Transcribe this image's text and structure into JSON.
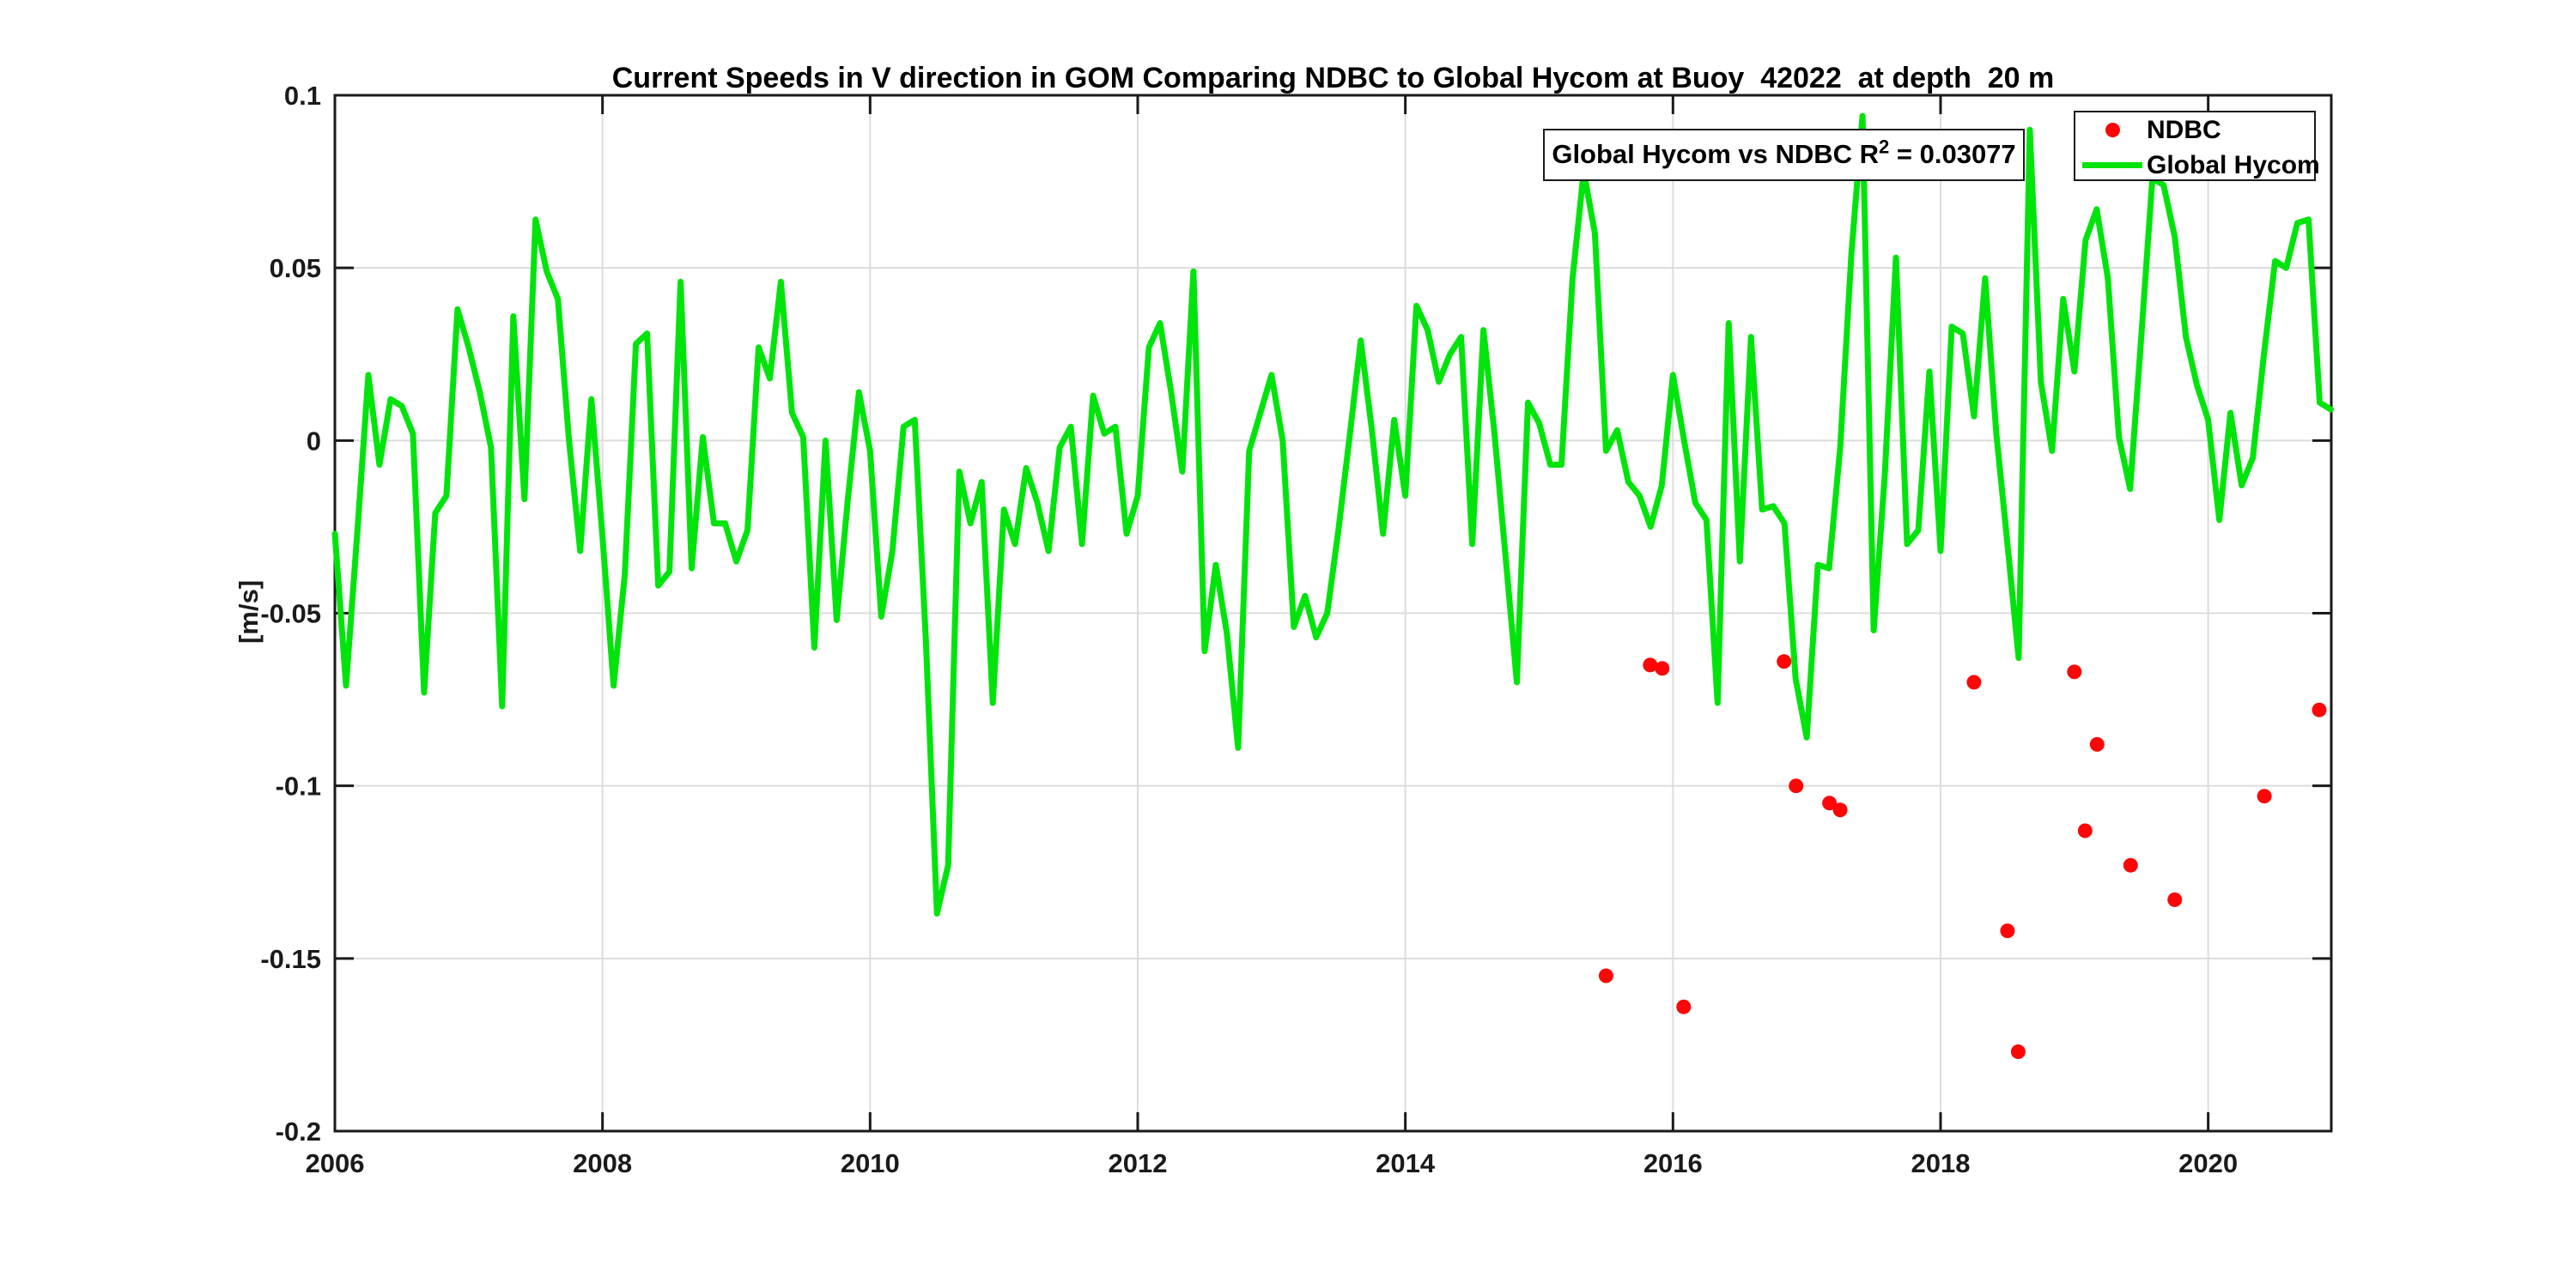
{
  "figure": {
    "background": "#ffffff"
  },
  "annotation": {
    "prefix": "Global Hycom vs NDBC R",
    "superscript": "2",
    "suffix": " = 0.03077"
  },
  "legend": {
    "position": "top-right",
    "items": [
      {
        "label": "NDBC",
        "marker": "red-dot"
      },
      {
        "label": "Global Hycom",
        "marker": "green-line"
      }
    ]
  },
  "colors": {
    "ndbc": "#fb0707",
    "hycom": "#00e40c",
    "axis": "#1a1a1a",
    "grid": "#dcdcdc",
    "background": "#ffffff"
  },
  "chart_data": {
    "type": "line",
    "title": "Current Speeds in V direction in GOM Comparing NDBC to Global Hycom at Buoy  42022  at depth  20 m",
    "xlabel": "",
    "ylabel": "[m/s]",
    "xlim": [
      2006,
      2020.92
    ],
    "ylim": [
      -0.2,
      0.1
    ],
    "grid": true,
    "legend_position": "top-right",
    "xticks": {
      "values": [
        2006,
        2008,
        2010,
        2012,
        2014,
        2016,
        2018,
        2020
      ],
      "labels": [
        "2006",
        "2008",
        "2010",
        "2012",
        "2014",
        "2016",
        "2018",
        "2020"
      ]
    },
    "yticks": {
      "values": [
        0.1,
        0.05,
        0,
        -0.05,
        -0.1,
        -0.15,
        -0.2
      ],
      "labels": [
        "0.1",
        "0.05",
        "0",
        "-0.05",
        "-0.1",
        "-0.15",
        "-0.2"
      ]
    },
    "series": [
      {
        "name": "Global Hycom",
        "type": "line",
        "color": "#00e40c",
        "x_start": 2006.0,
        "x_step_months": 1,
        "values": [
          -0.027,
          -0.071,
          -0.027,
          0.019,
          -0.007,
          0.012,
          0.01,
          0.002,
          -0.073,
          -0.021,
          -0.016,
          0.038,
          0.027,
          0.014,
          -0.002,
          -0.077,
          0.036,
          -0.017,
          0.064,
          0.049,
          0.041,
          0.0,
          -0.032,
          0.012,
          -0.028,
          -0.071,
          -0.039,
          0.028,
          0.031,
          -0.042,
          -0.038,
          0.046,
          -0.037,
          0.001,
          -0.024,
          -0.024,
          -0.035,
          -0.026,
          0.027,
          0.018,
          0.046,
          0.008,
          0.001,
          -0.06,
          0.0,
          -0.052,
          -0.017,
          0.014,
          -0.003,
          -0.051,
          -0.032,
          0.004,
          0.006,
          -0.058,
          -0.137,
          -0.123,
          -0.009,
          -0.024,
          -0.012,
          -0.076,
          -0.02,
          -0.03,
          -0.008,
          -0.018,
          -0.032,
          -0.002,
          0.004,
          -0.03,
          0.013,
          0.002,
          0.004,
          -0.027,
          -0.016,
          0.027,
          0.034,
          0.014,
          -0.009,
          0.049,
          -0.061,
          -0.036,
          -0.056,
          -0.089,
          -0.003,
          0.008,
          0.019,
          0.0,
          -0.054,
          -0.045,
          -0.057,
          -0.05,
          -0.026,
          0.001,
          0.029,
          0.003,
          -0.027,
          0.006,
          -0.016,
          0.039,
          0.032,
          0.017,
          0.025,
          0.03,
          -0.03,
          0.032,
          0.002,
          -0.034,
          -0.07,
          0.011,
          0.005,
          -0.007,
          -0.007,
          0.047,
          0.078,
          0.06,
          -0.003,
          0.003,
          -0.012,
          -0.016,
          -0.025,
          -0.013,
          0.019,
          0.0,
          -0.018,
          -0.023,
          -0.076,
          0.034,
          -0.035,
          0.03,
          -0.02,
          -0.019,
          -0.024,
          -0.069,
          -0.086,
          -0.036,
          -0.037,
          -0.002,
          0.054,
          0.094,
          -0.055,
          -0.01,
          0.053,
          -0.03,
          -0.026,
          0.02,
          -0.032,
          0.033,
          0.031,
          0.007,
          0.047,
          0.002,
          -0.03,
          -0.063,
          0.09,
          0.017,
          -0.003,
          0.041,
          0.02,
          0.058,
          0.067,
          0.047,
          0.001,
          -0.014,
          0.03,
          0.076,
          0.074,
          0.059,
          0.03,
          0.016,
          0.006,
          -0.023,
          0.008,
          -0.013,
          -0.005,
          0.025,
          0.052,
          0.05,
          0.063,
          0.064,
          0.011,
          0.009
        ]
      },
      {
        "name": "NDBC",
        "type": "scatter",
        "color": "#fb0707",
        "points": [
          [
            2015.5,
            -0.155
          ],
          [
            2015.83,
            -0.065
          ],
          [
            2015.92,
            -0.066
          ],
          [
            2016.08,
            -0.164
          ],
          [
            2016.83,
            -0.064
          ],
          [
            2016.92,
            -0.1
          ],
          [
            2017.17,
            -0.105
          ],
          [
            2017.25,
            -0.107
          ],
          [
            2018.25,
            -0.07
          ],
          [
            2018.5,
            -0.142
          ],
          [
            2018.58,
            -0.177
          ],
          [
            2019.0,
            -0.067
          ],
          [
            2019.08,
            -0.113
          ],
          [
            2019.17,
            -0.088
          ],
          [
            2019.42,
            -0.123
          ],
          [
            2019.75,
            -0.133
          ],
          [
            2020.42,
            -0.103
          ],
          [
            2020.83,
            -0.078
          ]
        ]
      }
    ],
    "annotation": "Global Hycom vs NDBC R2 = 0.03077"
  }
}
